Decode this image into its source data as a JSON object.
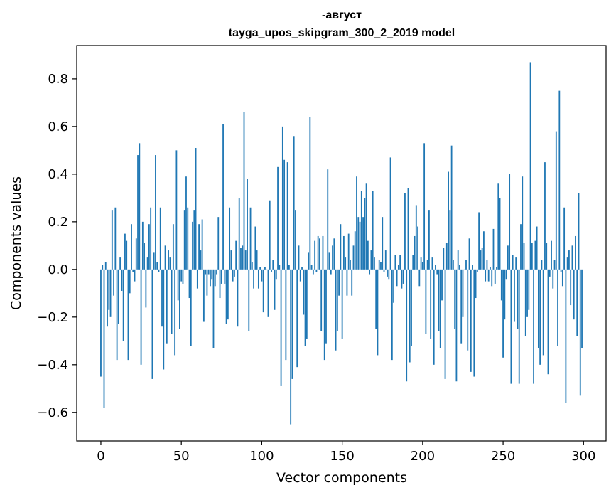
{
  "chart_data": {
    "type": "bar",
    "title": "-август",
    "subtitle": "tayga_upos_skipgram_300_2_2019 model",
    "xlabel": "Vector components",
    "ylabel": "Components values",
    "xlim": [
      -15,
      314
    ],
    "ylim": [
      -0.72,
      0.94
    ],
    "xticks": [
      0,
      50,
      100,
      150,
      200,
      250,
      300
    ],
    "yticks": [
      -0.6,
      -0.4,
      -0.2,
      0.0,
      0.2,
      0.4,
      0.6,
      0.8
    ],
    "ytick_labels": [
      "−0.6",
      "−0.4",
      "−0.2",
      "0.0",
      "0.2",
      "0.4",
      "0.6",
      "0.8"
    ],
    "xtick_labels": [
      "0",
      "50",
      "100",
      "150",
      "200",
      "250",
      "300"
    ],
    "bar_color": "#1f77b4",
    "values": [
      -0.45,
      0.02,
      -0.58,
      0.03,
      -0.24,
      -0.17,
      -0.2,
      0.25,
      -0.11,
      0.26,
      -0.38,
      -0.23,
      0.05,
      -0.09,
      -0.3,
      0.15,
      0.12,
      -0.38,
      -0.1,
      0.19,
      -0.01,
      -0.05,
      0.13,
      0.48,
      0.53,
      -0.4,
      0.2,
      0.11,
      -0.16,
      0.05,
      0.19,
      0.26,
      -0.46,
      0.07,
      0.48,
      0.03,
      -0.01,
      0.26,
      -0.24,
      -0.42,
      0.1,
      -0.31,
      0.08,
      0.05,
      -0.27,
      0.19,
      -0.36,
      0.5,
      -0.13,
      -0.25,
      -0.05,
      -0.06,
      0.25,
      0.39,
      0.26,
      -0.12,
      -0.32,
      0.2,
      0.25,
      0.51,
      -0.08,
      0.19,
      0.08,
      0.21,
      -0.22,
      -0.02,
      -0.11,
      -0.02,
      -0.07,
      -0.04,
      -0.33,
      -0.07,
      -0.02,
      0.22,
      -0.12,
      -0.06,
      0.61,
      -0.06,
      -0.23,
      -0.21,
      0.26,
      0.08,
      -0.05,
      -0.03,
      0.12,
      -0.24,
      0.3,
      0.09,
      0.1,
      0.66,
      0.08,
      0.38,
      -0.26,
      0.26,
      0.03,
      -0.08,
      0.18,
      0.08,
      -0.08,
      0.01,
      -0.05,
      -0.18,
      0.01,
      0.0,
      -0.2,
      0.29,
      -0.01,
      0.04,
      -0.17,
      -0.04,
      0.43,
      0.02,
      -0.49,
      0.6,
      0.46,
      -0.38,
      0.45,
      0.02,
      -0.65,
      -0.46,
      0.56,
      0.25,
      -0.41,
      0.1,
      -0.05,
      0.01,
      -0.19,
      -0.32,
      -0.29,
      0.07,
      0.64,
      0.02,
      -0.02,
      0.12,
      -0.01,
      0.14,
      0.13,
      -0.26,
      0.14,
      -0.38,
      -0.31,
      0.42,
      0.07,
      -0.02,
      0.1,
      0.13,
      -0.34,
      -0.26,
      -0.11,
      0.19,
      -0.29,
      0.14,
      0.05,
      -0.11,
      0.15,
      0.04,
      -0.11,
      0.1,
      0.16,
      0.39,
      0.22,
      0.2,
      0.33,
      0.22,
      0.3,
      0.36,
      0.12,
      -0.02,
      0.08,
      0.33,
      0.05,
      -0.25,
      -0.36,
      0.04,
      0.03,
      0.22,
      -0.01,
      0.08,
      -0.03,
      -0.04,
      0.47,
      -0.38,
      -0.14,
      0.06,
      -0.07,
      0.02,
      0.06,
      -0.08,
      -0.06,
      0.32,
      -0.47,
      0.34,
      -0.39,
      -0.32,
      0.06,
      0.14,
      0.27,
      0.18,
      -0.07,
      0.05,
      0.03,
      0.53,
      -0.27,
      0.04,
      0.25,
      -0.29,
      0.05,
      -0.4,
      0.02,
      -0.02,
      -0.26,
      -0.33,
      -0.13,
      0.09,
      -0.46,
      0.11,
      0.41,
      0.25,
      0.52,
      0.04,
      -0.25,
      -0.47,
      0.08,
      0.02,
      -0.31,
      -0.2,
      0.0,
      0.04,
      -0.34,
      0.13,
      -0.43,
      0.02,
      -0.45,
      -0.12,
      -0.01,
      0.24,
      0.08,
      0.09,
      0.16,
      -0.05,
      0.04,
      -0.05,
      0.01,
      -0.07,
      0.17,
      -0.06,
      0.01,
      0.36,
      0.3,
      -0.13,
      -0.37,
      -0.21,
      -0.04,
      0.1,
      0.4,
      -0.48,
      0.06,
      -0.22,
      0.05,
      -0.25,
      -0.48,
      0.19,
      0.39,
      0.11,
      -0.28,
      -0.2,
      -0.17,
      0.87,
      0.11,
      -0.48,
      0.12,
      0.18,
      -0.33,
      -0.4,
      0.04,
      -0.36,
      0.45,
      0.11,
      -0.44,
      -0.03,
      0.12,
      -0.08,
      0.04,
      0.58,
      -0.32,
      0.75,
      -0.01,
      -0.07,
      0.26,
      -0.56,
      0.05,
      0.08,
      -0.15,
      0.1,
      -0.21,
      0.14,
      -0.28,
      0.32,
      -0.53,
      -0.33
    ]
  }
}
